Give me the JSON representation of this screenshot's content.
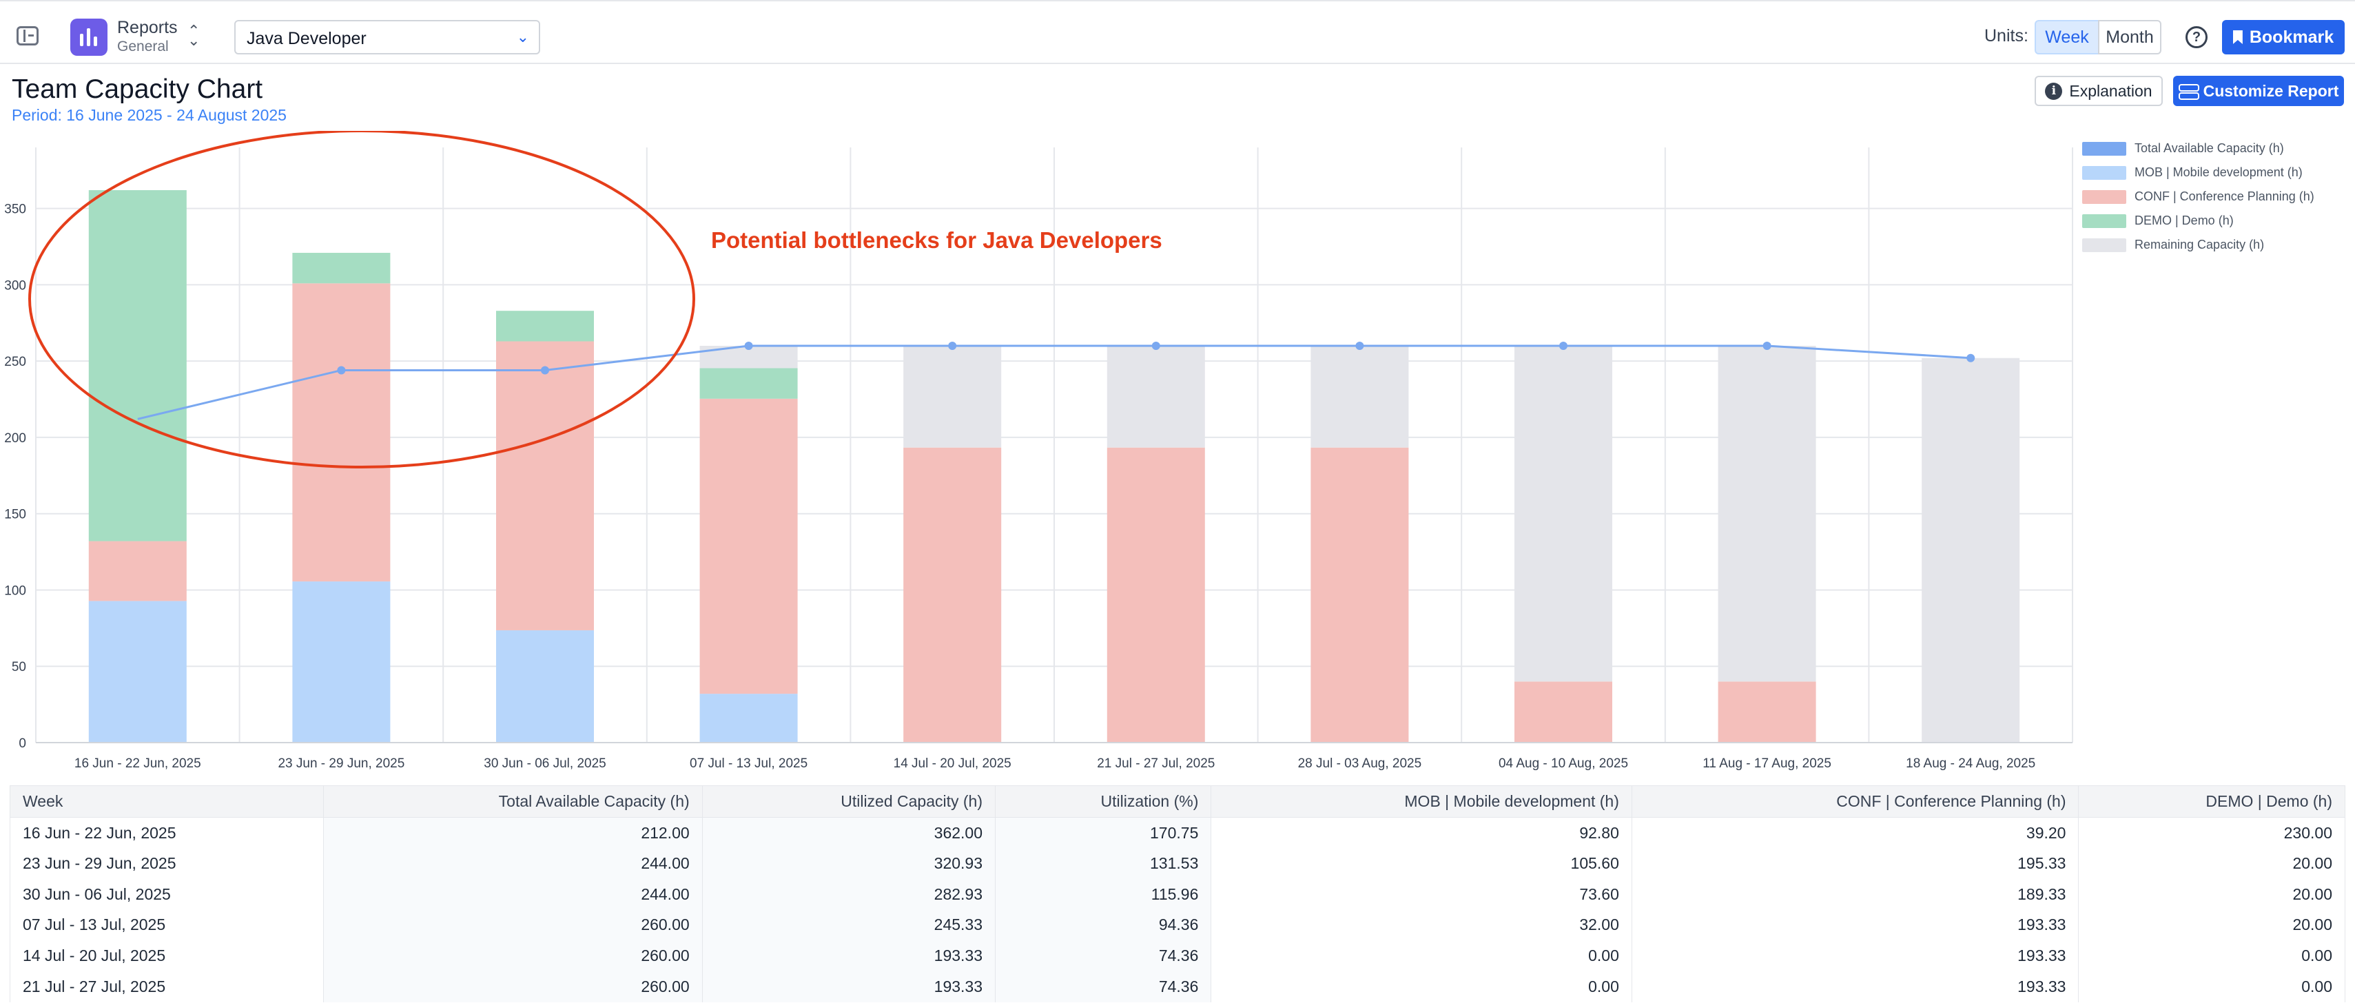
{
  "header": {
    "app_title": "Reports",
    "app_subtitle": "General",
    "selected_team": "Java Developer",
    "units_label": "Units:",
    "unit_options": [
      "Week",
      "Month"
    ],
    "selected_unit": "Week",
    "help_symbol": "?",
    "bookmark_label": "Bookmark"
  },
  "page": {
    "title": "Team Capacity Chart",
    "period": "Period: 16 June 2025 - 24 August 2025",
    "explanation_label": "Explanation",
    "customize_label": "Customize Report"
  },
  "annotation": {
    "text": "Potential bottlenecks for Java Developers",
    "color": "#e53e1a"
  },
  "chart_data": {
    "type": "bar",
    "stacked": true,
    "categories": [
      "16 Jun - 22 Jun, 2025",
      "23 Jun - 29 Jun, 2025",
      "30 Jun - 06 Jul, 2025",
      "07 Jul - 13 Jul, 2025",
      "14 Jul - 20 Jul, 2025",
      "21 Jul - 27 Jul, 2025",
      "28 Jul - 03 Aug, 2025",
      "04 Aug - 10 Aug, 2025",
      "11 Aug - 17 Aug, 2025",
      "18 Aug - 24 Aug, 2025"
    ],
    "series": [
      {
        "name": "MOB | Mobile development (h)",
        "color": "#b7d6fb",
        "values": [
          92.8,
          105.6,
          73.6,
          32.0,
          0,
          0,
          0,
          0,
          0,
          0
        ]
      },
      {
        "name": "CONF | Conference Planning (h)",
        "color": "#f4bfbb",
        "values": [
          39.2,
          195.33,
          189.33,
          193.33,
          193.33,
          193.33,
          193.33,
          40,
          40,
          0
        ]
      },
      {
        "name": "DEMO | Demo (h)",
        "color": "#a5ddc2",
        "values": [
          230.0,
          20.0,
          20.0,
          20.0,
          0,
          0,
          0,
          0,
          0,
          0
        ]
      },
      {
        "name": "Remaining Capacity (h)",
        "color": "#e4e5ea",
        "values": [
          0,
          0,
          0,
          14.67,
          66.67,
          66.67,
          66.67,
          220,
          220,
          252
        ]
      }
    ],
    "line": {
      "name": "Total Available Capacity (h)",
      "color": "#7aa8f0",
      "values": [
        212,
        244,
        244,
        260,
        260,
        260,
        260,
        260,
        260,
        252
      ]
    },
    "ylim": [
      0,
      390
    ],
    "yticks": [
      0,
      50,
      100,
      150,
      200,
      250,
      300,
      350
    ],
    "legend_labels": [
      "Total Available Capacity (h)",
      "MOB | Mobile development (h)",
      "CONF | Conference Planning (h)",
      "DEMO | Demo (h)",
      "Remaining Capacity (h)"
    ],
    "legend_position": "top-right",
    "grid": true
  },
  "table": {
    "columns": [
      "Week",
      "Total Available Capacity (h)",
      "Utilized Capacity (h)",
      "Utilization (%)",
      "MOB | Mobile development (h)",
      "CONF | Conference Planning (h)",
      "DEMO | Demo (h)"
    ],
    "rows": [
      [
        "16 Jun - 22 Jun, 2025",
        "212.00",
        "362.00",
        "170.75",
        "92.80",
        "39.20",
        "230.00"
      ],
      [
        "23 Jun - 29 Jun, 2025",
        "244.00",
        "320.93",
        "131.53",
        "105.60",
        "195.33",
        "20.00"
      ],
      [
        "30 Jun - 06 Jul, 2025",
        "244.00",
        "282.93",
        "115.96",
        "73.60",
        "189.33",
        "20.00"
      ],
      [
        "07 Jul - 13 Jul, 2025",
        "260.00",
        "245.33",
        "94.36",
        "32.00",
        "193.33",
        "20.00"
      ],
      [
        "14 Jul - 20 Jul, 2025",
        "260.00",
        "193.33",
        "74.36",
        "0.00",
        "193.33",
        "0.00"
      ],
      [
        "21 Jul - 27 Jul, 2025",
        "260.00",
        "193.33",
        "74.36",
        "0.00",
        "193.33",
        "0.00"
      ]
    ]
  }
}
